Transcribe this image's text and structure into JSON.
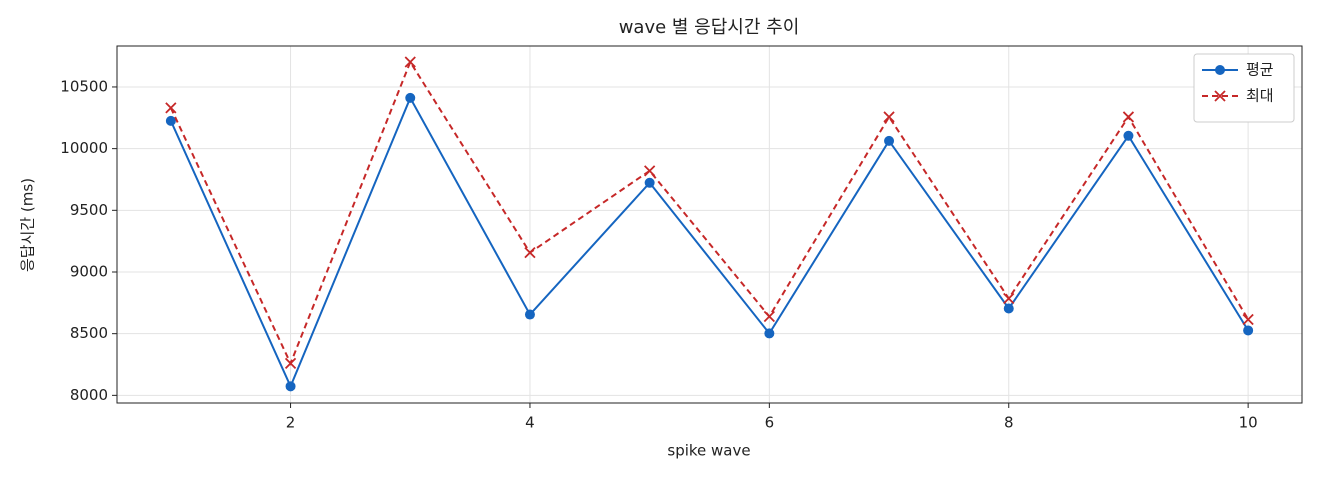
{
  "chart_data": {
    "type": "line",
    "title": "wave 별 응답시간 추이",
    "xlabel": "spike wave",
    "ylabel": "응답시간 (ms)",
    "x": [
      1,
      2,
      3,
      4,
      5,
      6,
      7,
      8,
      9,
      10
    ],
    "series": [
      {
        "name": "평균",
        "color": "#1565c0",
        "dash": false,
        "marker": "circle",
        "values": [
          10225,
          8073,
          10411,
          8655,
          9723,
          8502,
          10063,
          8704,
          10104,
          8526
        ]
      },
      {
        "name": "최대",
        "color": "#c62828",
        "dash": true,
        "marker": "x",
        "values": [
          10330,
          8259,
          10702,
          9157,
          9820,
          8639,
          10257,
          8785,
          10257,
          8615
        ]
      }
    ],
    "xlim": [
      0.55,
      10.45
    ],
    "ylim": [
      7938,
      10832
    ],
    "xticks": [
      2,
      4,
      6,
      8,
      10
    ],
    "yticks": [
      8000,
      8500,
      9000,
      9500,
      10000,
      10500
    ],
    "grid": true,
    "legend": "upper right"
  }
}
